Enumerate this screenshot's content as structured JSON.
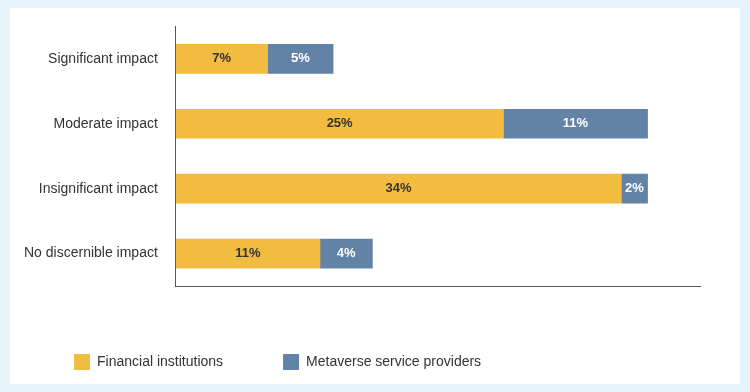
{
  "chart_data": {
    "type": "bar",
    "orientation": "horizontal",
    "stacked": true,
    "categories": [
      "Significant impact",
      "Moderate impact",
      "Insignificant impact",
      "No discernible impact"
    ],
    "series": [
      {
        "name": "Financial institutions",
        "color": "#f2bc41",
        "values": [
          7,
          25,
          34,
          11
        ],
        "value_labels": [
          "7%",
          "25%",
          "34%",
          "11%"
        ]
      },
      {
        "name": "Metaverse service providers",
        "color": "#6383a6",
        "values": [
          5,
          11,
          2,
          4
        ],
        "value_labels": [
          "5%",
          "11%",
          "2%",
          "4%"
        ]
      }
    ],
    "xlim": [
      0,
      40
    ],
    "grid": false,
    "tick_labels": "y",
    "data_labels": true,
    "legend": "bottom"
  }
}
